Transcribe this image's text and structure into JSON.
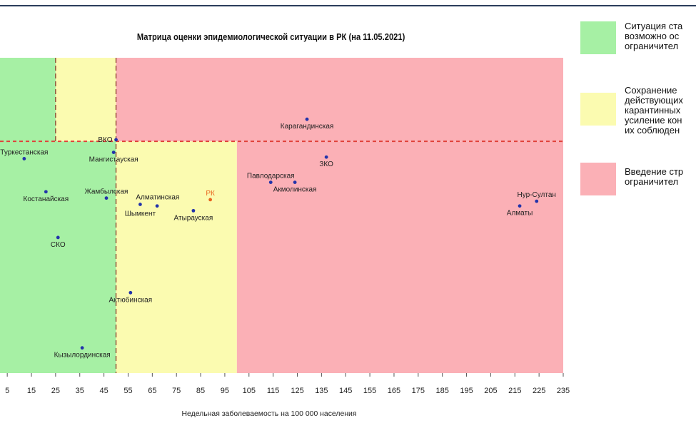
{
  "chart_data": {
    "type": "scatter",
    "title": "Матрица оценки эпидемиологической ситуации в РК (на 11.05.2021)",
    "xlabel": "Недельная заболеваемость на 100 000 населения",
    "ylabel": "",
    "xlim": [
      2,
      235
    ],
    "ylim": [
      0,
      100
    ],
    "x_ticks": [
      5,
      15,
      25,
      35,
      45,
      55,
      65,
      75,
      85,
      95,
      105,
      115,
      125,
      135,
      145,
      155,
      165,
      175,
      185,
      195,
      205,
      215,
      225,
      235
    ],
    "grid": false,
    "background_zones": [
      {
        "x_from": 2,
        "x_to": 50,
        "y_from": 0,
        "y_to": 100,
        "color": "#a6f0a4"
      },
      {
        "x_from": 25,
        "x_to": 50,
        "y_from": 73.5,
        "y_to": 100,
        "color": "#fbfbb0"
      },
      {
        "x_from": 50,
        "x_to": 100,
        "y_from": 0,
        "y_to": 73.5,
        "color": "#fbfbb0"
      },
      {
        "x_from": 100,
        "x_to": 235,
        "y_from": 0,
        "y_to": 73.5,
        "color": "#fbb0b6"
      },
      {
        "x_from": 50,
        "x_to": 235,
        "y_from": 73.5,
        "y_to": 100,
        "color": "#fbb0b6"
      }
    ],
    "threshold_lines": [
      {
        "axis": "x",
        "value": 25,
        "y_from": 73.5,
        "y_to": 100
      },
      {
        "axis": "x",
        "value": 50,
        "y_from": 0,
        "y_to": 100
      },
      {
        "axis": "y",
        "value": 73.5,
        "x_from": 2,
        "x_to": 235
      }
    ],
    "points": [
      {
        "name": "Туркестанская",
        "x": 12,
        "y": 68,
        "color": "#2233aa",
        "label_pos": "top"
      },
      {
        "name": "Костанайская",
        "x": 21,
        "y": 57.5,
        "color": "#2233aa",
        "label_pos": "bottom"
      },
      {
        "name": "СКО",
        "x": 26,
        "y": 43,
        "color": "#2233aa",
        "label_pos": "bottom"
      },
      {
        "name": "Кызылординская",
        "x": 36,
        "y": 8,
        "color": "#2233aa",
        "label_pos": "bottom"
      },
      {
        "name": "Жамбылская",
        "x": 46,
        "y": 55.5,
        "color": "#2233aa",
        "label_pos": "top"
      },
      {
        "name": "Мангистауская",
        "x": 49,
        "y": 70,
        "color": "#2233aa",
        "label_pos": "bottom"
      },
      {
        "name": "ВКО",
        "x": 50,
        "y": 74,
        "color": "#2233aa",
        "label_pos": "left"
      },
      {
        "name": "Актюбинская",
        "x": 56,
        "y": 25.5,
        "color": "#2233aa",
        "label_pos": "bottom"
      },
      {
        "name": "Алматинская",
        "x": 60,
        "y": 53.5,
        "color": "#2233aa",
        "label_pos": "top-right"
      },
      {
        "name": "Шымкент",
        "x": 67,
        "y": 53,
        "color": "#2233aa",
        "label_pos": "bottom-left"
      },
      {
        "name": "Атырауская",
        "x": 82,
        "y": 51.5,
        "color": "#2233aa",
        "label_pos": "bottom"
      },
      {
        "name": "РК",
        "x": 89,
        "y": 55,
        "color": "#e8641e",
        "label_pos": "top"
      },
      {
        "name": "Павлодарская",
        "x": 114,
        "y": 60.5,
        "color": "#2233aa",
        "label_pos": "top"
      },
      {
        "name": "Акмолинская",
        "x": 124,
        "y": 60.5,
        "color": "#2233aa",
        "label_pos": "bottom"
      },
      {
        "name": "Карагандинская",
        "x": 129,
        "y": 80.5,
        "color": "#2233aa",
        "label_pos": "bottom"
      },
      {
        "name": "ЗКО",
        "x": 137,
        "y": 68.5,
        "color": "#2233aa",
        "label_pos": "bottom"
      },
      {
        "name": "Алматы",
        "x": 217,
        "y": 53,
        "color": "#2233aa",
        "label_pos": "bottom"
      },
      {
        "name": "Нур-Султан",
        "x": 224,
        "y": 54.5,
        "color": "#2233aa",
        "label_pos": "top"
      }
    ],
    "legend_position": "right"
  },
  "legend": [
    {
      "text": "Ситуация ста\nвозможно ос\nограничител",
      "color": "#a6f0a4"
    },
    {
      "text": "Сохранение\nдействующих\nкарантинных\nусиление кон\nих соблюден",
      "color": "#fbfbb0"
    },
    {
      "text": "Введение стр\nограничител",
      "color": "#fbb0b6"
    }
  ]
}
